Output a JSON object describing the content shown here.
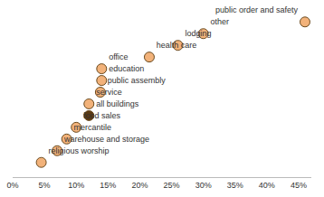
{
  "chart_data": {
    "type": "scatter",
    "categories": [
      "public order and safety",
      "other",
      "lodging",
      "health care",
      "office",
      "education",
      "public assembly",
      "service",
      "all buildings",
      "food sales",
      "mercantile",
      "warehouse and storage",
      "religious worship"
    ],
    "values": [
      46,
      30,
      26,
      21.5,
      14,
      14,
      13.8,
      12,
      12,
      10,
      8.5,
      7,
      4.5
    ],
    "colors": [
      "#f2b27a",
      "#f2b27a",
      "#f2b27a",
      "#f2b27a",
      "#f2b27a",
      "#f2b27a",
      "#f2b27a",
      "#f2b27a",
      "#5c3a12",
      "#f2b27a",
      "#f2b27a",
      "#f2b27a",
      "#f2b27a"
    ],
    "marker": "circle",
    "xlim": [
      0,
      47
    ],
    "xticks": [
      {
        "value": 0,
        "label": "0%"
      },
      {
        "value": 5,
        "label": "5%"
      },
      {
        "value": 10,
        "label": "10%"
      },
      {
        "value": 15,
        "label": "15%"
      },
      {
        "value": 20,
        "label": "20%"
      },
      {
        "value": 25,
        "label": "25%"
      },
      {
        "value": 30,
        "label": "30%"
      },
      {
        "value": 35,
        "label": "35%"
      },
      {
        "value": 40,
        "label": "40%"
      },
      {
        "value": 45,
        "label": "45%"
      }
    ],
    "grid": false,
    "tick_labels": "x"
  }
}
